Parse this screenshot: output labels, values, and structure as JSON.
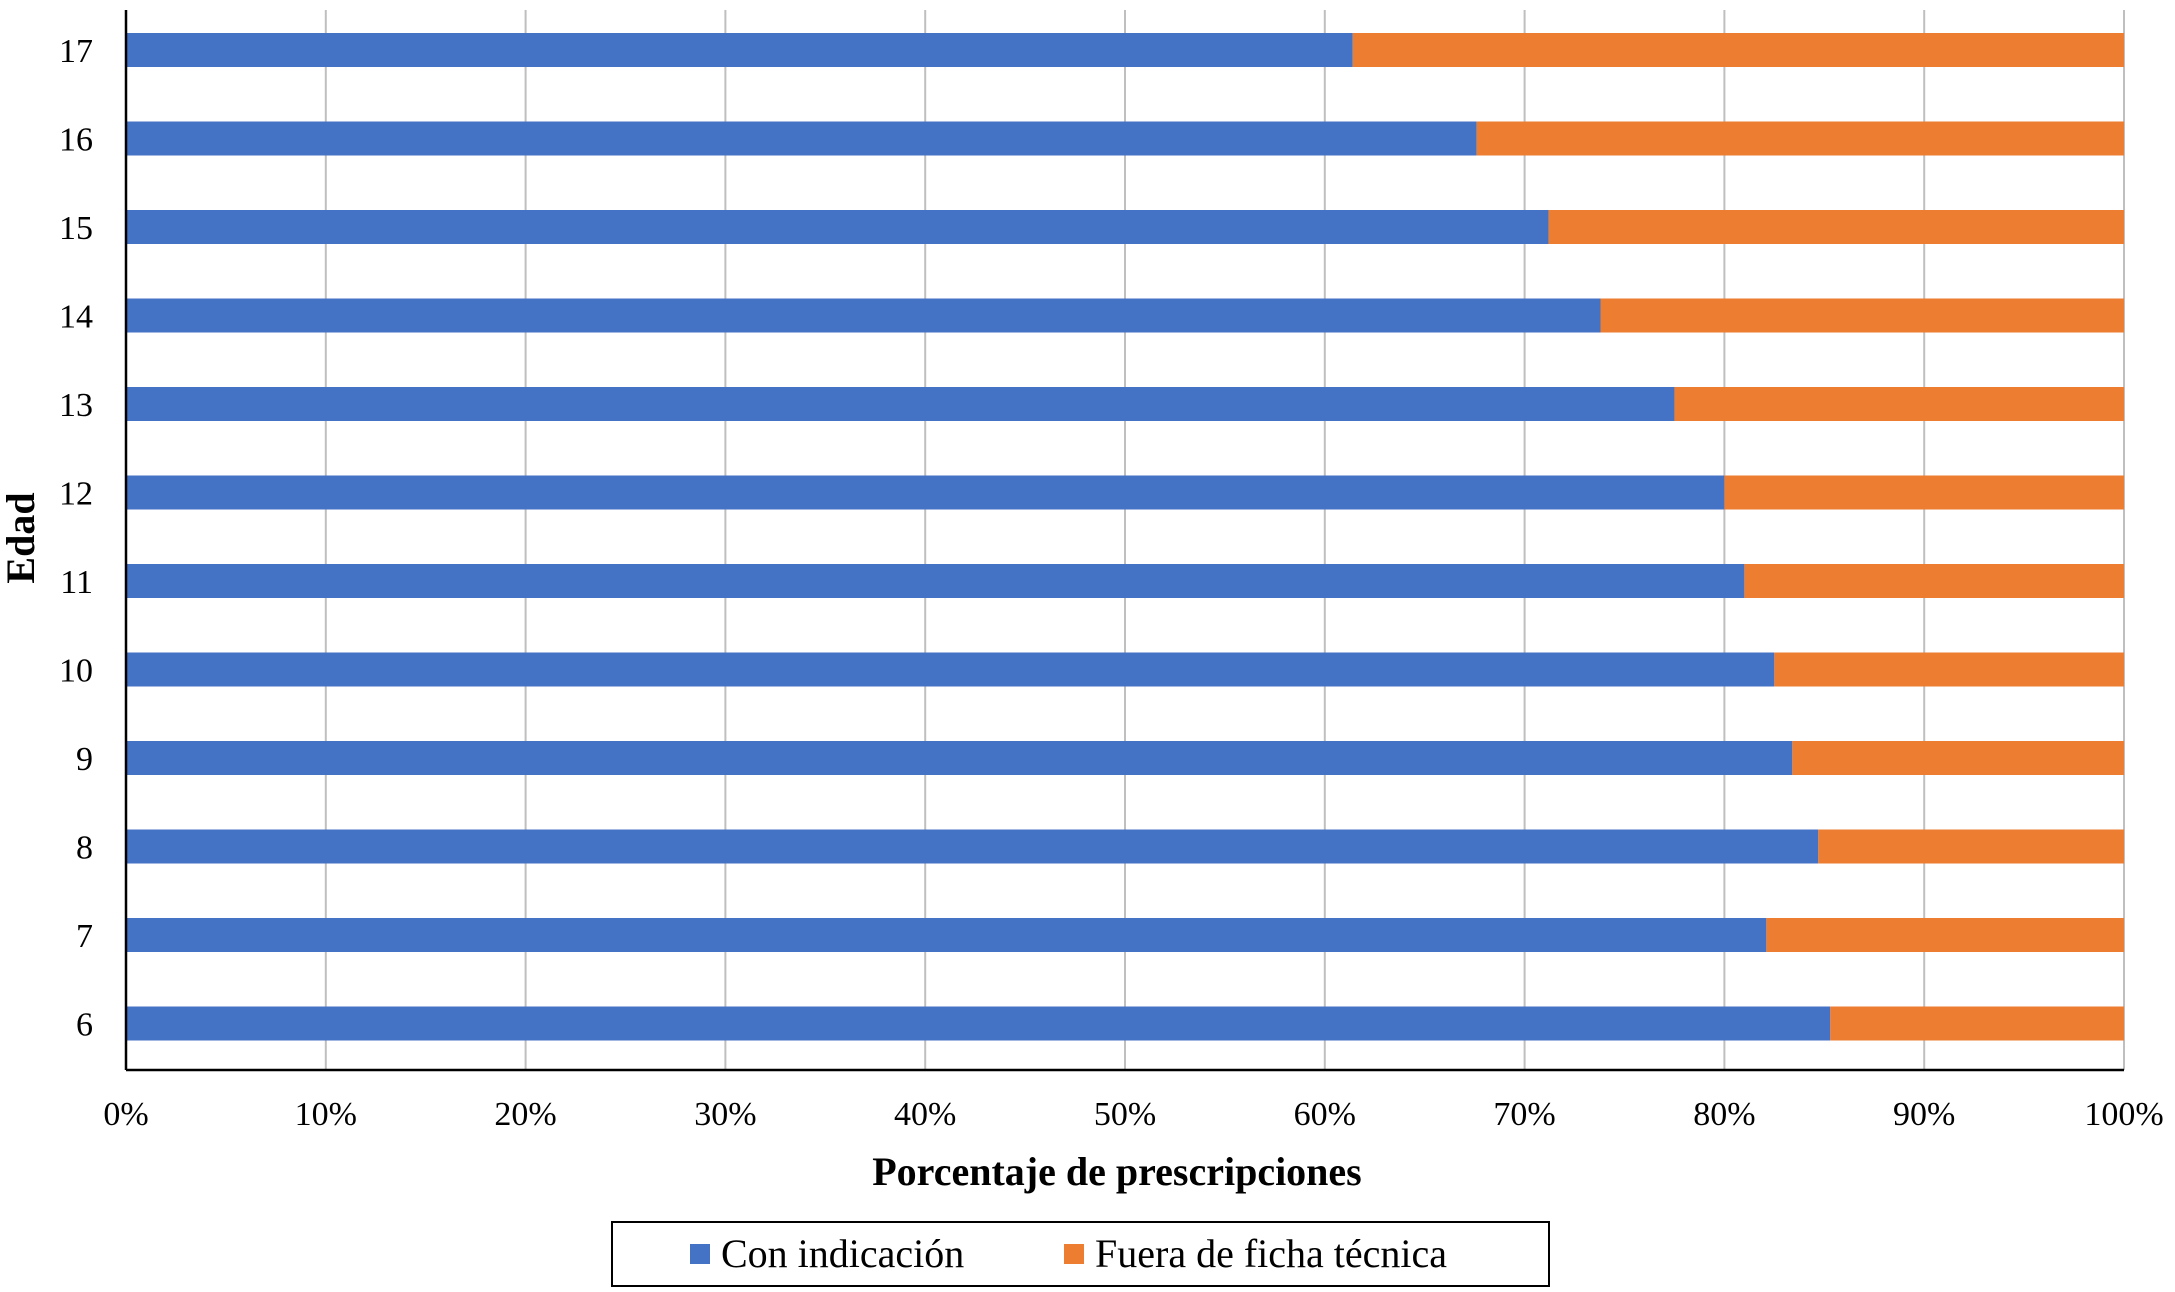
{
  "chart_data": {
    "type": "bar",
    "orientation": "horizontal",
    "stacked": true,
    "categories": [
      "17",
      "16",
      "15",
      "14",
      "13",
      "12",
      "11",
      "10",
      "9",
      "8",
      "7",
      "6"
    ],
    "series": [
      {
        "name": "Con indicación",
        "color": "#4472C4",
        "values": [
          61.4,
          67.6,
          71.2,
          73.8,
          77.5,
          80.0,
          81.0,
          82.5,
          83.4,
          84.7,
          82.1,
          85.3
        ]
      },
      {
        "name": "Fuera de ficha técnica",
        "color": "#ED7D31",
        "values": [
          38.6,
          32.4,
          28.8,
          26.2,
          22.5,
          20.0,
          19.0,
          17.5,
          16.6,
          15.3,
          17.9,
          14.7
        ]
      }
    ],
    "xlim": [
      0,
      100
    ],
    "xticks": [
      "0%",
      "10%",
      "20%",
      "30%",
      "40%",
      "50%",
      "60%",
      "70%",
      "80%",
      "90%",
      "100%"
    ],
    "xlabel": "Porcentaje de prescripciones",
    "ylabel": "Edad",
    "grid": "vertical",
    "legend": "bottom"
  }
}
